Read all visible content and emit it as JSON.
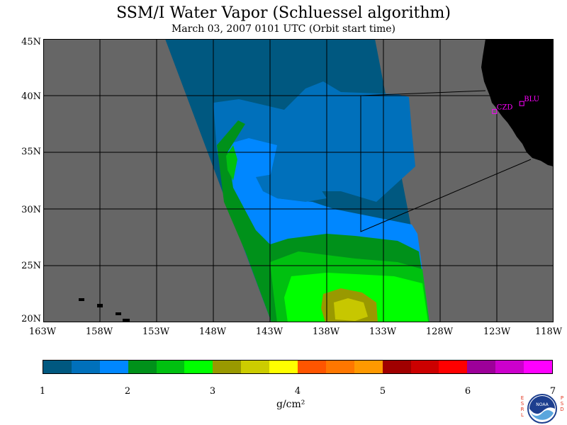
{
  "title": "SSM/I Water Vapor (Schluessel algorithm)",
  "subtitle": "March 03, 2007  0101 UTC  (Orbit start time)",
  "map": {
    "lat_labels": [
      "45N",
      "40N",
      "35N",
      "30N",
      "25N",
      "20N"
    ],
    "lon_labels": [
      "163W",
      "158W",
      "153W",
      "148W",
      "143W",
      "138W",
      "133W",
      "128W",
      "123W",
      "118W"
    ],
    "lat_range": [
      20,
      45
    ],
    "lon_range": [
      -163,
      -118
    ],
    "stations": [
      {
        "label": "CZD",
        "lon": -123.2,
        "lat": 38.6
      },
      {
        "label": "BLU",
        "lon": -120.8,
        "lat": 39.3
      }
    ],
    "colors": {
      "no_data": "#666666",
      "land": "#000000",
      "station": "#ff00ff",
      "grid": "#000000"
    }
  },
  "colorbar": {
    "ticks": [
      "1",
      "2",
      "3",
      "4",
      "5",
      "6",
      "7"
    ],
    "unit": "g/cm²",
    "range": [
      1,
      7
    ],
    "colors": [
      "#005880",
      "#0070bb",
      "#0087ff",
      "#00911a",
      "#00c010",
      "#00ff00",
      "#999900",
      "#cccc00",
      "#ffff00",
      "#ff5500",
      "#ff7700",
      "#ff9900",
      "#a00000",
      "#cc0000",
      "#ff0000",
      "#9d0099",
      "#cc00cc",
      "#ff00ff"
    ]
  },
  "logo": {
    "left_letters": [
      "E",
      "S",
      "R",
      "L"
    ],
    "right_letters": [
      "P",
      "S",
      "D"
    ],
    "text": "NOAA"
  }
}
